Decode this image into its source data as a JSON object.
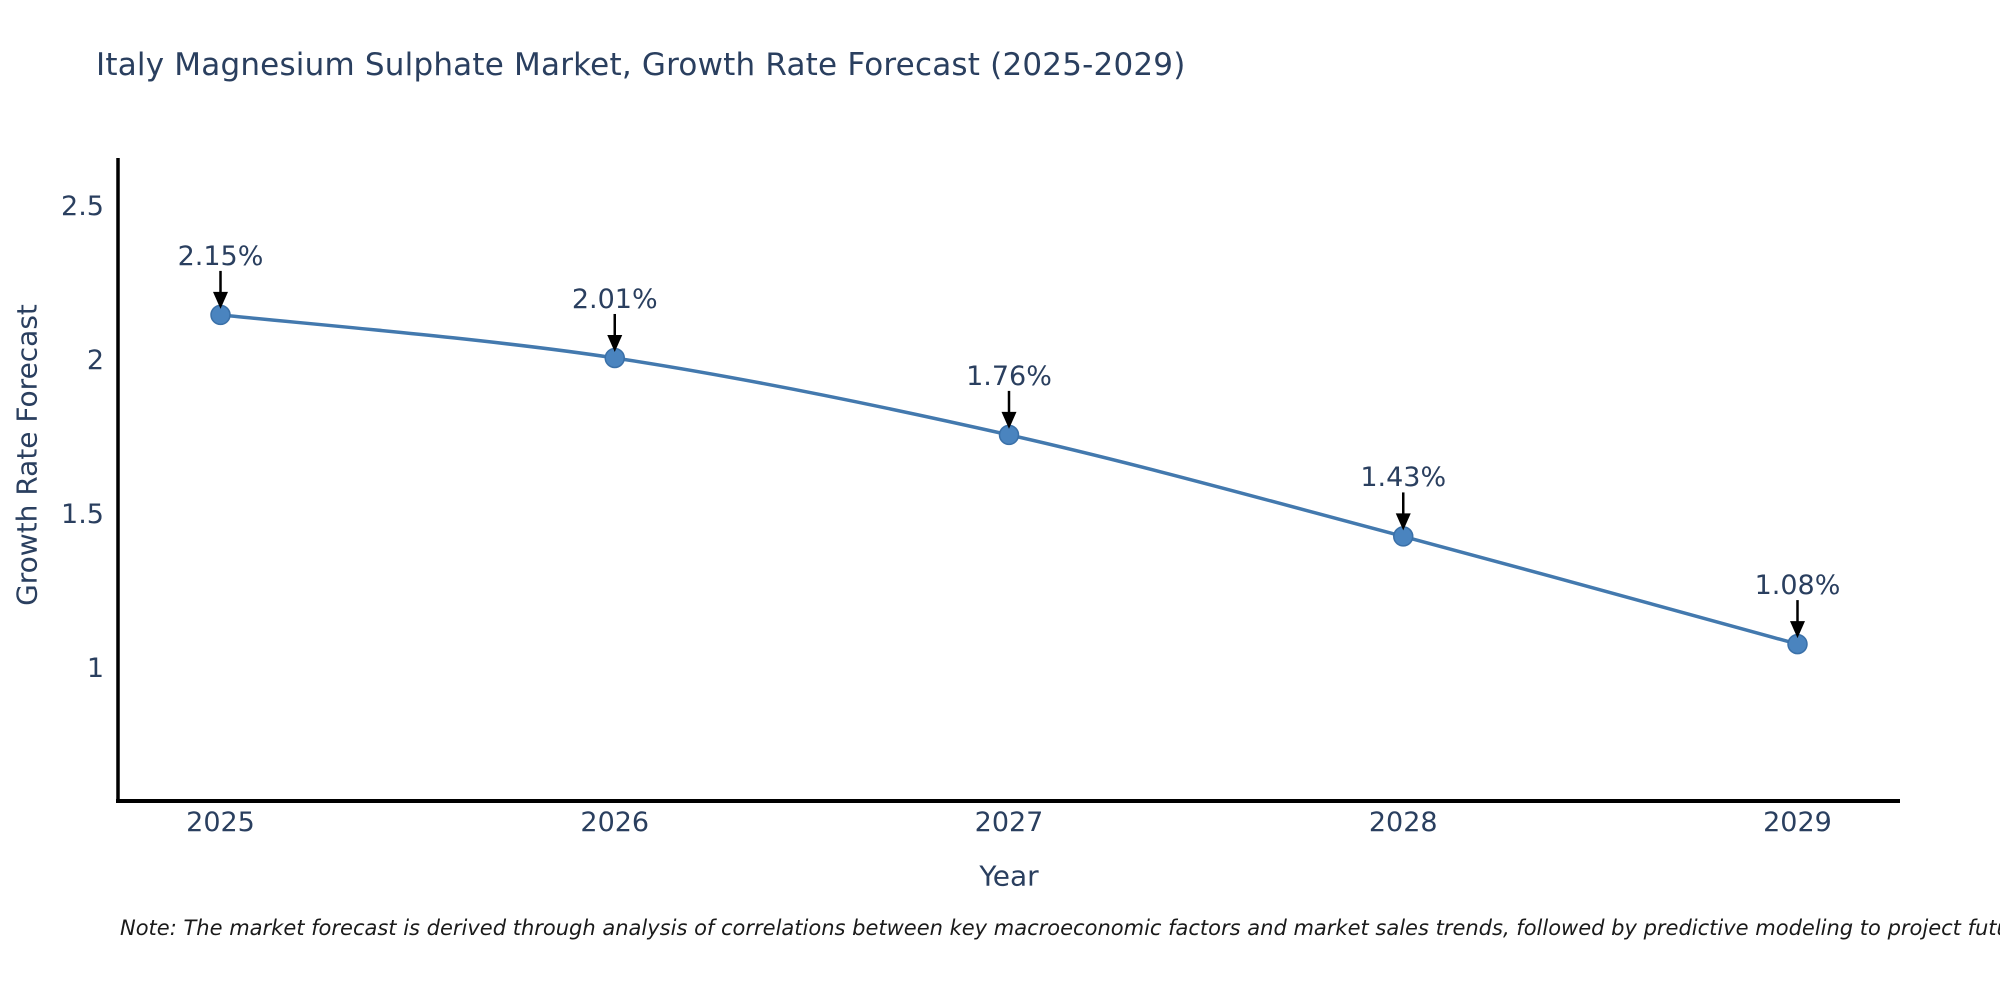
{
  "title": "Italy Magnesium Sulphate Market, Growth Rate Forecast (2025-2029)",
  "note": "Note: The market forecast is derived through analysis of correlations between key macroeconomic factors and market sales trends, followed by predictive modeling to project future sales",
  "chart_data": {
    "type": "line",
    "title": "Italy Magnesium Sulphate Market, Growth Rate Forecast (2025-2029)",
    "xlabel": "Year",
    "ylabel": "Growth Rate Forecast",
    "x": [
      2025,
      2026,
      2027,
      2028,
      2029
    ],
    "y": [
      2.15,
      2.01,
      1.76,
      1.43,
      1.08
    ],
    "point_labels": [
      "2.15%",
      "2.01%",
      "1.76%",
      "1.43%",
      "1.08%"
    ],
    "x_tick_labels": [
      "2025",
      "2026",
      "2027",
      "2028",
      "2029"
    ],
    "y_tick_values": [
      2.5,
      2,
      1.5,
      1
    ],
    "y_tick_labels": [
      "2.5",
      "2",
      "1.5",
      "1"
    ],
    "x_range": [
      2024.74,
      2029.26
    ],
    "y_range": [
      0.57,
      2.66
    ],
    "grid": false,
    "legend": "none",
    "line_shape": "spline",
    "line_width": 3.5,
    "marker_radius": 9.5,
    "colors": {
      "line": "#4379ae",
      "marker": "#4a84bf",
      "marker_edge": "#3a70a8",
      "axis": "#000000",
      "text": "#2a3f5f",
      "annotation": "#2a3f5f",
      "arrow": "#000000"
    }
  }
}
